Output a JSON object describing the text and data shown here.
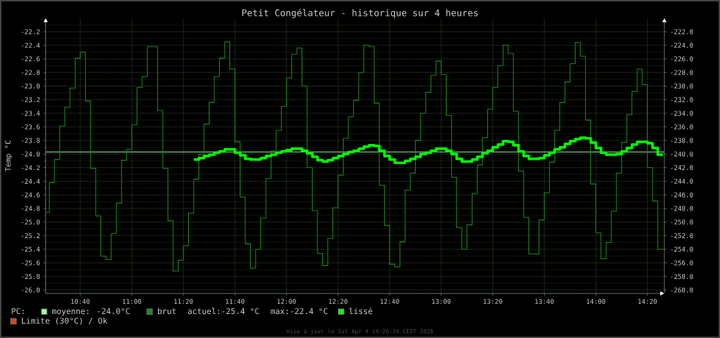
{
  "chart_data": {
    "type": "step",
    "title": "Petit Congélateur - historique sur 4 heures",
    "ylabel": "Temp °C",
    "legend_title": "PC:",
    "xlim": [
      10.443,
      14.443
    ],
    "ylim": [
      -26.05,
      -22.0
    ],
    "y2lim": [
      -260.5,
      -220.0
    ],
    "xticks": [
      {
        "value": 10.6667,
        "label": "10:40"
      },
      {
        "value": 11,
        "label": "11:00"
      },
      {
        "value": 11.3333,
        "label": "11:20"
      },
      {
        "value": 11.6667,
        "label": "11:40"
      },
      {
        "value": 12,
        "label": "12:00"
      },
      {
        "value": 12.3333,
        "label": "12:20"
      },
      {
        "value": 12.6667,
        "label": "12:40"
      },
      {
        "value": 13,
        "label": "13:00"
      },
      {
        "value": 13.3333,
        "label": "13:20"
      },
      {
        "value": 13.6667,
        "label": "13:40"
      },
      {
        "value": 14,
        "label": "14:00"
      },
      {
        "value": 14.3333,
        "label": "14:20"
      }
    ],
    "yticks": [
      {
        "value": -22.1,
        "label": null
      },
      -22.2,
      {
        "value": -22.3,
        "label": null
      },
      -22.4,
      {
        "value": -22.5,
        "label": null
      },
      -22.6,
      {
        "value": -22.7,
        "label": null
      },
      -22.8,
      {
        "value": -22.9,
        "label": null
      },
      {
        "value": -23,
        "label": "-23.0"
      },
      {
        "value": -23.1,
        "label": null
      },
      -23.2,
      {
        "value": -23.3,
        "label": null
      },
      -23.4,
      {
        "value": -23.5,
        "label": null
      },
      -23.6,
      {
        "value": -23.7,
        "label": null
      },
      -23.8,
      {
        "value": -23.9,
        "label": null
      },
      {
        "value": -24,
        "label": "-24.0"
      },
      {
        "value": -24.1,
        "label": null
      },
      -24.2,
      {
        "value": -24.3,
        "label": null
      },
      -24.4,
      {
        "value": -24.5,
        "label": null
      },
      -24.6,
      {
        "value": -24.7,
        "label": null
      },
      -24.8,
      {
        "value": -24.9,
        "label": null
      },
      {
        "value": -25,
        "label": "-25.0"
      },
      {
        "value": -25.1,
        "label": null
      },
      -25.2,
      {
        "value": -25.3,
        "label": null
      },
      -25.4,
      {
        "value": -25.5,
        "label": null
      },
      -25.6,
      {
        "value": -25.7,
        "label": null
      },
      -25.8,
      {
        "value": -25.9,
        "label": null
      },
      {
        "value": -26,
        "label": "-26.0"
      }
    ],
    "y2ticks": [
      {
        "value": -222,
        "label": "-222.0"
      },
      {
        "value": -224,
        "label": "-224.0"
      },
      {
        "value": -226,
        "label": "-226.0"
      },
      {
        "value": -228,
        "label": "-228.0"
      },
      {
        "value": -230,
        "label": "-230.0"
      },
      {
        "value": -232,
        "label": "-232.0"
      },
      {
        "value": -234,
        "label": "-234.0"
      },
      {
        "value": -236,
        "label": "-236.0"
      },
      {
        "value": -238,
        "label": "-238.0"
      },
      {
        "value": -240,
        "label": "-240.0"
      },
      {
        "value": -242,
        "label": "-242.0"
      },
      {
        "value": -244,
        "label": "-244.0"
      },
      {
        "value": -246,
        "label": "-246.0"
      },
      {
        "value": -248,
        "label": "-248.0"
      },
      {
        "value": -250,
        "label": "-250.0"
      },
      {
        "value": -252,
        "label": "-252.0"
      },
      {
        "value": -254,
        "label": "-254.0"
      },
      {
        "value": -256,
        "label": "-256.0"
      },
      {
        "value": -258,
        "label": "-258.0"
      },
      {
        "value": -260,
        "label": "-260.0"
      }
    ],
    "grid": true,
    "legend": "bottom",
    "x": [
      10.443,
      10.4667,
      10.5,
      10.5333,
      10.5667,
      10.6,
      10.6333,
      10.6667,
      10.7,
      10.7333,
      10.7667,
      10.8,
      10.8333,
      10.8667,
      10.9,
      10.9333,
      10.9667,
      11,
      11.0333,
      11.0667,
      11.1,
      11.1333,
      11.1667,
      11.2,
      11.2333,
      11.2667,
      11.3,
      11.3333,
      11.3667,
      11.4,
      11.4333,
      11.4667,
      11.5,
      11.5333,
      11.5667,
      11.6,
      11.6333,
      11.6667,
      11.7,
      11.7333,
      11.7667,
      11.8,
      11.8333,
      11.8667,
      11.9,
      11.9333,
      11.9667,
      12,
      12.0333,
      12.0667,
      12.1,
      12.1333,
      12.1667,
      12.2,
      12.2333,
      12.2667,
      12.3,
      12.3333,
      12.3667,
      12.4,
      12.4333,
      12.4667,
      12.5,
      12.5333,
      12.5667,
      12.6,
      12.6333,
      12.6667,
      12.7,
      12.7333,
      12.7667,
      12.8,
      12.8333,
      12.8667,
      12.9,
      12.9333,
      12.9667,
      13,
      13.0333,
      13.0667,
      13.1,
      13.1333,
      13.1667,
      13.2,
      13.2333,
      13.2667,
      13.3,
      13.3333,
      13.3667,
      13.4,
      13.4333,
      13.4667,
      13.5,
      13.5333,
      13.5667,
      13.6,
      13.6333,
      13.6667,
      13.7,
      13.7333,
      13.7667,
      13.8,
      13.8333,
      13.8667,
      13.9,
      13.9333,
      13.9667,
      14,
      14.0333,
      14.0667,
      14.1,
      14.1333,
      14.1667,
      14.2,
      14.2333,
      14.2667,
      14.3,
      14.3333,
      14.3667,
      14.4,
      14.4333,
      14.443
    ],
    "series": [
      {
        "name": "brut",
        "color": "#1f8a1f",
        "values": [
          -24.86,
          -24.42,
          -24.08,
          -23.59,
          -23.31,
          -23.03,
          -22.59,
          -22.5,
          -23.22,
          -24.21,
          -24.91,
          -25.5,
          -25.55,
          -25.17,
          -24.72,
          -24.09,
          -23.93,
          -23.57,
          -23.02,
          -22.86,
          -22.42,
          -22.42,
          -23.36,
          -24.21,
          -24.98,
          -25.72,
          -25.56,
          -25.35,
          -24.87,
          -24.37,
          -24.01,
          -23.56,
          -23.24,
          -22.86,
          -22.59,
          -22.35,
          -22.75,
          -23.82,
          -24.63,
          -25.32,
          -25.68,
          -25.4,
          -24.94,
          -24.36,
          -23.95,
          -23.65,
          -23.3,
          -22.88,
          -22.53,
          -22.44,
          -23.0,
          -24.2,
          -24.83,
          -25.46,
          -25.64,
          -25.24,
          -24.79,
          -24.31,
          -23.77,
          -23.45,
          -23.21,
          -22.8,
          -22.4,
          -22.42,
          -23.25,
          -24.46,
          -25.05,
          -25.62,
          -25.66,
          -25.29,
          -24.53,
          -24.28,
          -23.8,
          -23.4,
          -23.09,
          -22.84,
          -22.63,
          -22.83,
          -23.43,
          -24.34,
          -25.08,
          -25.4,
          -25.04,
          -24.58,
          -24.16,
          -23.76,
          -23.34,
          -23.02,
          -22.7,
          -22.4,
          -22.52,
          -23.37,
          -24.25,
          -24.93,
          -25.47,
          -25.47,
          -24.97,
          -24.57,
          -24.12,
          -23.65,
          -23.24,
          -22.94,
          -22.67,
          -22.36,
          -22.56,
          -23.5,
          -24.44,
          -25.16,
          -25.54,
          -25.3,
          -24.84,
          -24.28,
          -23.83,
          -23.42,
          -23.08,
          -22.75,
          -22.98,
          -24.2,
          -24.69,
          -25.4,
          -25.4,
          -25.4
        ]
      },
      {
        "name": "lissé",
        "color": "#00ff00",
        "values": [
          null,
          null,
          null,
          null,
          null,
          null,
          null,
          null,
          null,
          null,
          null,
          null,
          null,
          null,
          null,
          null,
          null,
          null,
          null,
          null,
          null,
          null,
          null,
          null,
          null,
          null,
          null,
          null,
          null,
          -24.08,
          -24.06,
          -24.03,
          -24.01,
          -23.98,
          -23.96,
          -23.93,
          -23.93,
          -23.98,
          -24.02,
          -24.07,
          -24.08,
          -24.08,
          -24.06,
          -24.03,
          -24.01,
          -23.98,
          -23.96,
          -23.94,
          -23.92,
          -23.92,
          -23.95,
          -23.99,
          -24.04,
          -24.09,
          -24.11,
          -24.09,
          -24.06,
          -24.03,
          -24.0,
          -23.97,
          -23.95,
          -23.92,
          -23.89,
          -23.87,
          -23.88,
          -23.95,
          -24.03,
          -24.08,
          -24.13,
          -24.13,
          -24.1,
          -24.07,
          -24.04,
          -24.0,
          -23.98,
          -23.95,
          -23.92,
          -23.92,
          -23.95,
          -24.0,
          -24.07,
          -24.11,
          -24.11,
          -24.08,
          -24.04,
          -23.99,
          -23.95,
          -23.9,
          -23.86,
          -23.81,
          -23.82,
          -23.87,
          -23.96,
          -24.03,
          -24.07,
          -24.07,
          -24.06,
          -24.02,
          -23.98,
          -23.93,
          -23.9,
          -23.85,
          -23.81,
          -23.78,
          -23.76,
          -23.77,
          -23.83,
          -23.91,
          -23.98,
          -24.01,
          -24.01,
          -24.0,
          -23.96,
          -23.91,
          -23.86,
          -23.82,
          -23.82,
          -23.84,
          -23.91,
          -24.01,
          -24.01,
          null
        ]
      },
      {
        "name": "Limite (30°C) /   Ok",
        "color": "#e0401a",
        "values": [
          null,
          null,
          null,
          null,
          null,
          null,
          null,
          null,
          null,
          null,
          null,
          null,
          null,
          null,
          null,
          null,
          null,
          null,
          null,
          null,
          null,
          null,
          null,
          null,
          null,
          null,
          null,
          null,
          null,
          null,
          null,
          null,
          null,
          null,
          null,
          null,
          null,
          null,
          null,
          null,
          null,
          null,
          null,
          null,
          null,
          null,
          null,
          null,
          null,
          null,
          null,
          null,
          null,
          null,
          null,
          null,
          null,
          null,
          null,
          null,
          null,
          null,
          null,
          null,
          null,
          null,
          null,
          null,
          null,
          null,
          null,
          null,
          null,
          null,
          null,
          null,
          null,
          null,
          null,
          null,
          null,
          null,
          null,
          null,
          null,
          null,
          null,
          null,
          null,
          null,
          null,
          null,
          null,
          null,
          null,
          null,
          null,
          null,
          null,
          null,
          null,
          null,
          null,
          null,
          null,
          null,
          null,
          null,
          null,
          null,
          null,
          null,
          null,
          null,
          null,
          null,
          null,
          null,
          null,
          null,
          null,
          null
        ]
      }
    ],
    "ref_lines": [
      {
        "axis": "y",
        "value": -23.97,
        "label": "moyenne:   -24.0°C",
        "color": "#a0ffa0"
      }
    ],
    "annotations": [
      "actuel:-25.4 °C",
      "max:-22.4 °C",
      "mise à jour le Sat Apr  4 14:26:34 CEST 2026"
    ]
  }
}
